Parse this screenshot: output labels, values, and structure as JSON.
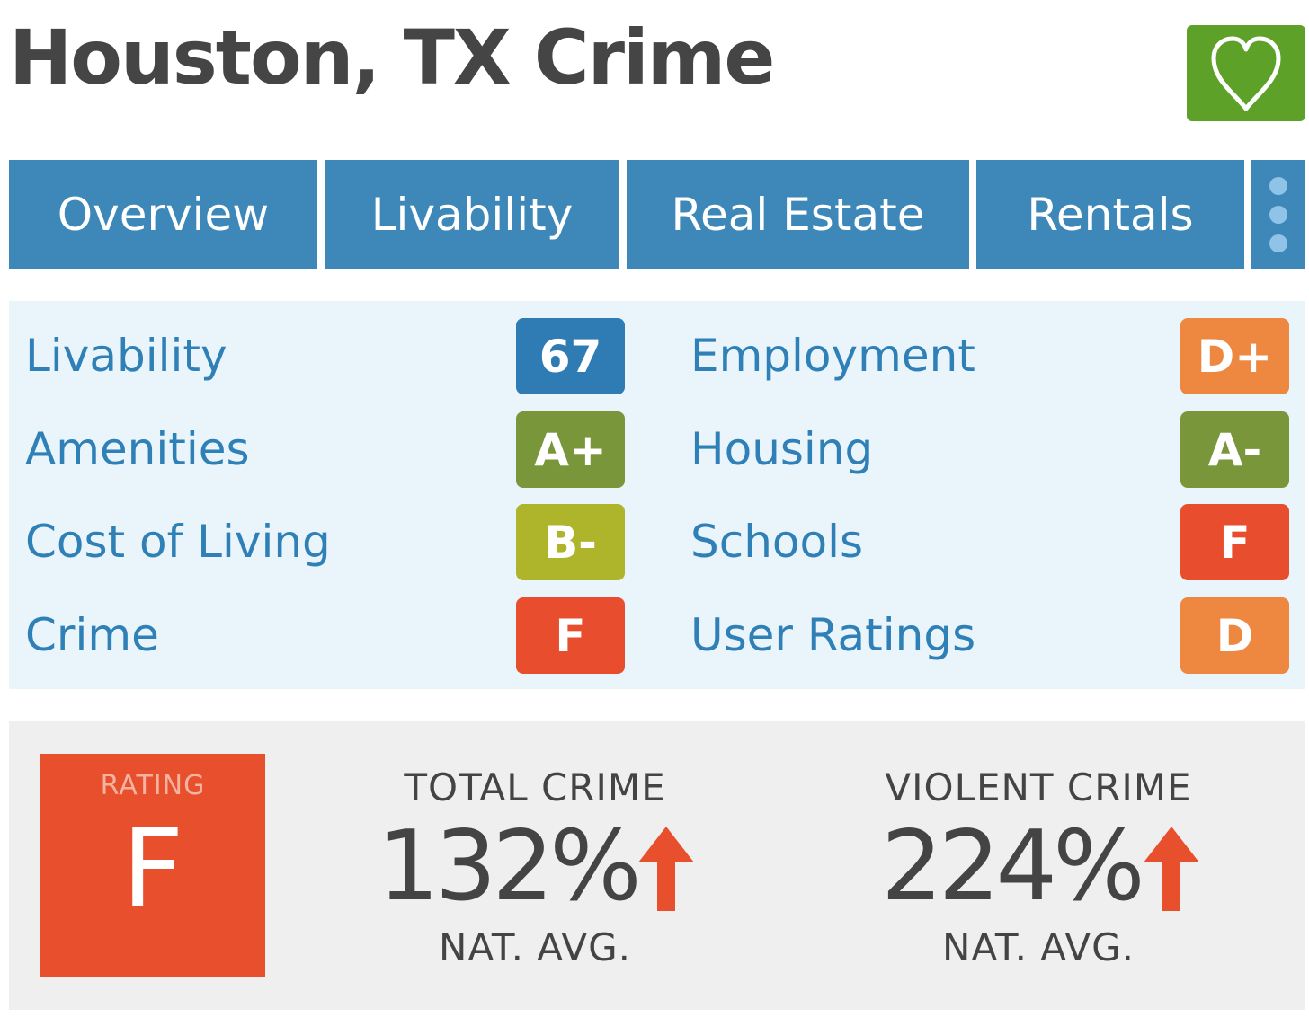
{
  "header": {
    "title": "Houston, TX Crime",
    "favorite_icon": "heart-icon"
  },
  "tabs": [
    {
      "label": "Overview"
    },
    {
      "label": "Livability"
    },
    {
      "label": "Real Estate"
    },
    {
      "label": "Rentals"
    }
  ],
  "more_icon": "vertical-dots-icon",
  "scores": {
    "left": [
      {
        "label": "Livability",
        "value": "67",
        "color": "#2f7cb4"
      },
      {
        "label": "Amenities",
        "value": "A+",
        "color": "#7a963a"
      },
      {
        "label": "Cost of Living",
        "value": "B-",
        "color": "#aeb52a"
      },
      {
        "label": "Crime",
        "value": "F",
        "color": "#e84e2d"
      }
    ],
    "right": [
      {
        "label": "Employment",
        "value": "D+",
        "color": "#ee8740"
      },
      {
        "label": "Housing",
        "value": "A-",
        "color": "#7a963a"
      },
      {
        "label": "Schools",
        "value": "F",
        "color": "#e84e2d"
      },
      {
        "label": "User Ratings",
        "value": "D",
        "color": "#ee8740"
      }
    ]
  },
  "crime": {
    "rating_label": "RATING",
    "rating_grade": "F",
    "total": {
      "heading": "TOTAL CRIME",
      "value": "132%",
      "sub": "NAT. AVG.",
      "trend": "up"
    },
    "violent": {
      "heading": "VIOLENT CRIME",
      "value": "224%",
      "sub": "NAT. AVG.",
      "trend": "up"
    },
    "arrow_color": "#e8502d"
  }
}
